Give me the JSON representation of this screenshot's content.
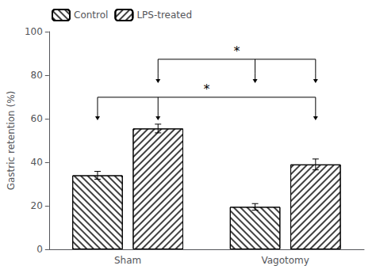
{
  "chart_data": {
    "type": "bar",
    "categories": [
      "Sham",
      "Vagotomy"
    ],
    "series": [
      {
        "name": "Control",
        "color": "white",
        "values": [
          34.0,
          19.5
        ],
        "errors": [
          1.8,
          1.5
        ]
      },
      {
        "name": "LPS-treated",
        "color": "white",
        "values": [
          55.5,
          39.0
        ],
        "errors": [
          2.0,
          2.5
        ]
      }
    ],
    "ylabel": "Gastric retention (%)",
    "ylim": [
      0,
      100
    ],
    "yticks": [
      0,
      20,
      40,
      60,
      80,
      100
    ],
    "grid": false,
    "legend": "upper left",
    "annotations": [
      {
        "text": "*"
      },
      {
        "text": "*"
      }
    ]
  }
}
